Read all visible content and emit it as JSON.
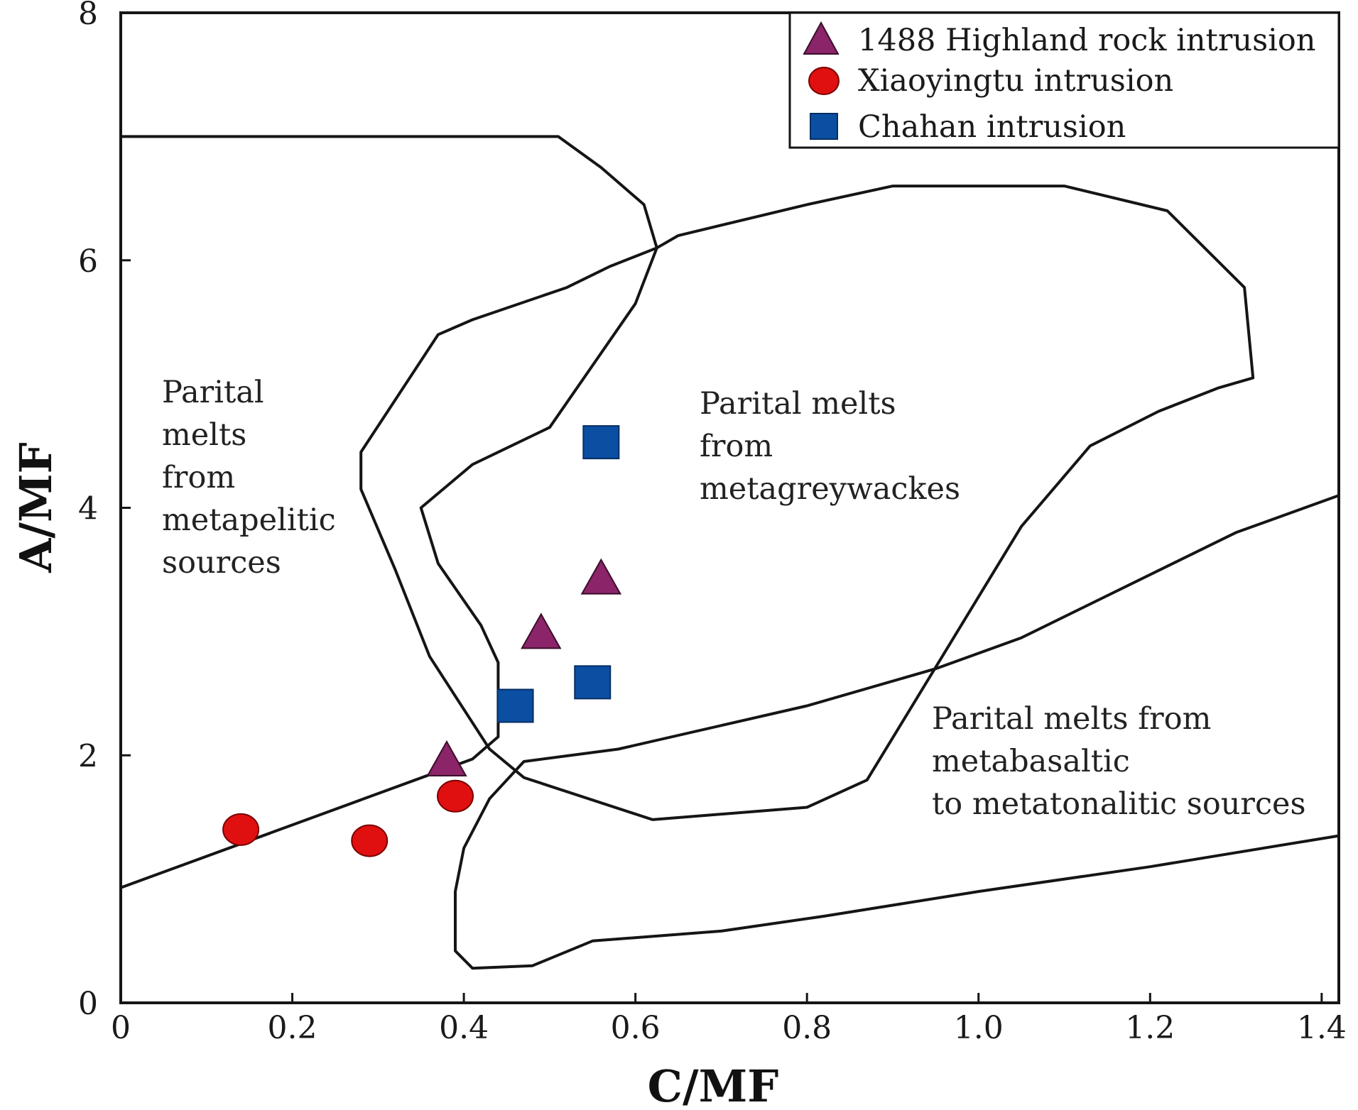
{
  "chart_data": {
    "type": "scatter",
    "title": "",
    "xlabel": "C/MF",
    "ylabel": "A/MF",
    "xlim": [
      0,
      1.42
    ],
    "ylim": [
      0,
      8
    ],
    "x_ticks": [
      0,
      0.2,
      0.4,
      0.6,
      0.8,
      1.0,
      1.2,
      1.4
    ],
    "x_tick_labels": [
      "0",
      "0.2",
      "0.4",
      "0.6",
      "0.8",
      "1.0",
      "1.2",
      "1.4"
    ],
    "y_ticks": [
      0,
      2,
      4,
      6,
      8
    ],
    "y_tick_labels": [
      "0",
      "2",
      "4",
      "6",
      "8"
    ],
    "legend_position": "top-right",
    "series": [
      {
        "name": "1488 Highland rock intrusion",
        "marker": "triangle",
        "color": "#8b2468",
        "points": [
          [
            0.38,
            1.95
          ],
          [
            0.49,
            2.98
          ],
          [
            0.56,
            3.42
          ]
        ]
      },
      {
        "name": "Xiaoyingtu intrusion",
        "marker": "circle",
        "color": "#e01010",
        "points": [
          [
            0.14,
            1.4
          ],
          [
            0.29,
            1.31
          ],
          [
            0.39,
            1.67
          ]
        ]
      },
      {
        "name": "Chahan intrusion",
        "marker": "square",
        "color": "#0b4fa3",
        "points": [
          [
            0.56,
            4.53
          ],
          [
            0.55,
            2.59
          ],
          [
            0.46,
            2.4
          ]
        ]
      }
    ],
    "regions": [
      {
        "name": "metapelitic",
        "label_lines": [
          "Parital",
          "melts",
          "from",
          "metapelitic",
          "sources"
        ],
        "boundary": [
          [
            0,
            7.0
          ],
          [
            0.51,
            7.0
          ],
          [
            0.56,
            6.75
          ],
          [
            0.61,
            6.45
          ],
          [
            0.625,
            6.1
          ],
          [
            0.6,
            5.65
          ],
          [
            0.5,
            4.65
          ],
          [
            0.41,
            4.35
          ],
          [
            0.35,
            4.0
          ],
          [
            0.37,
            3.55
          ],
          [
            0.42,
            3.05
          ],
          [
            0.44,
            2.75
          ],
          [
            0.44,
            2.15
          ],
          [
            0.41,
            1.97
          ],
          [
            0.0,
            0.93
          ]
        ]
      },
      {
        "name": "metagreywackes",
        "label_lines": [
          "Parital melts",
          "from",
          "metagreywackes"
        ],
        "boundary": [
          [
            0.625,
            6.1
          ],
          [
            0.65,
            6.2
          ],
          [
            0.8,
            6.45
          ],
          [
            0.9,
            6.6
          ],
          [
            1.1,
            6.6
          ],
          [
            1.22,
            6.4
          ],
          [
            1.31,
            5.78
          ],
          [
            1.32,
            5.05
          ],
          [
            1.28,
            4.97
          ],
          [
            1.21,
            4.78
          ],
          [
            1.13,
            4.5
          ],
          [
            1.05,
            3.85
          ],
          [
            0.87,
            1.8
          ],
          [
            0.8,
            1.58
          ],
          [
            0.62,
            1.48
          ],
          [
            0.47,
            1.82
          ],
          [
            0.43,
            2.05
          ],
          [
            0.36,
            2.8
          ],
          [
            0.32,
            3.5
          ],
          [
            0.28,
            4.15
          ],
          [
            0.28,
            4.45
          ],
          [
            0.37,
            5.4
          ],
          [
            0.41,
            5.52
          ],
          [
            0.52,
            5.78
          ],
          [
            0.57,
            5.95
          ],
          [
            0.625,
            6.1
          ]
        ]
      },
      {
        "name": "metabasaltic",
        "label_lines": [
          "Parital melts from",
          "metabasaltic",
          "to metatonalitic  sources"
        ],
        "boundary": [
          [
            1.42,
            4.1
          ],
          [
            1.3,
            3.8
          ],
          [
            1.05,
            2.95
          ],
          [
            0.95,
            2.7
          ],
          [
            0.8,
            2.4
          ],
          [
            0.58,
            2.05
          ],
          [
            0.47,
            1.95
          ],
          [
            0.43,
            1.65
          ],
          [
            0.4,
            1.25
          ],
          [
            0.39,
            0.9
          ],
          [
            0.39,
            0.42
          ],
          [
            0.41,
            0.28
          ],
          [
            0.48,
            0.3
          ],
          [
            0.55,
            0.5
          ],
          [
            0.7,
            0.58
          ],
          [
            0.82,
            0.7
          ],
          [
            1.0,
            0.9
          ],
          [
            1.2,
            1.1
          ],
          [
            1.42,
            1.35
          ]
        ]
      }
    ]
  }
}
